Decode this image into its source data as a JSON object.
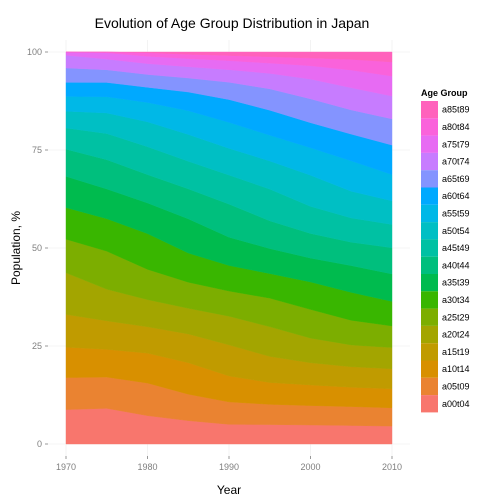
{
  "chart_data": {
    "type": "area",
    "stacked": true,
    "normalized_percent": true,
    "title": "Evolution of Age Group Distribution in Japan",
    "xlabel": "Year",
    "ylabel": "Population, %",
    "xlim": [
      1970,
      2010
    ],
    "ylim": [
      0,
      100
    ],
    "x_ticks": [
      "1970",
      "1980",
      "1990",
      "2000",
      "2010"
    ],
    "y_ticks": [
      "0",
      "25",
      "50",
      "75",
      "100"
    ],
    "grid": true,
    "legend": {
      "title": "Age Group",
      "position": "right"
    },
    "x": [
      1970,
      1975,
      1980,
      1985,
      1990,
      1995,
      2000,
      2005,
      2010
    ],
    "series": [
      {
        "name": "a00t04",
        "color": "#F8766D",
        "values": [
          8.6,
          9.0,
          7.3,
          6.0,
          5.0,
          4.9,
          4.7,
          4.5,
          4.3
        ]
      },
      {
        "name": "a05t09",
        "color": "#EA8331",
        "values": [
          8.0,
          7.9,
          8.4,
          6.8,
          5.7,
          5.1,
          4.8,
          4.6,
          4.4
        ]
      },
      {
        "name": "a10t14",
        "color": "#D89000",
        "values": [
          7.6,
          7.0,
          7.7,
          8.1,
          6.6,
          5.5,
          5.1,
          4.7,
          4.6
        ]
      },
      {
        "name": "a15t19",
        "color": "#C09B00",
        "values": [
          8.2,
          7.2,
          6.8,
          7.4,
          7.9,
          6.6,
          5.5,
          5.0,
          4.8
        ]
      },
      {
        "name": "a20t24",
        "color": "#A3A500",
        "values": [
          10.4,
          8.0,
          7.0,
          6.6,
          7.3,
          7.5,
          6.1,
          5.3,
          5.1
        ]
      },
      {
        "name": "a25t29",
        "color": "#7CAE00",
        "values": [
          8.4,
          9.6,
          7.8,
          6.7,
          6.4,
          7.2,
          7.1,
          6.0,
          5.2
        ]
      },
      {
        "name": "a30t34",
        "color": "#39B600",
        "values": [
          7.9,
          8.2,
          9.2,
          7.5,
          6.5,
          6.2,
          6.8,
          6.8,
          5.9
        ]
      },
      {
        "name": "a35t39",
        "color": "#00BB4E",
        "values": [
          7.8,
          7.5,
          7.9,
          8.8,
          7.2,
          6.3,
          5.9,
          6.5,
          6.6
        ]
      },
      {
        "name": "a40t44",
        "color": "#00BF7D",
        "values": [
          6.8,
          7.4,
          7.3,
          7.7,
          8.4,
          7.0,
          6.1,
          5.7,
          6.3
        ]
      },
      {
        "name": "a45t49",
        "color": "#00C1A3",
        "values": [
          5.3,
          6.6,
          7.2,
          7.1,
          7.4,
          8.0,
          6.7,
          5.9,
          5.6
        ]
      },
      {
        "name": "a50t54",
        "color": "#00BFC4",
        "values": [
          4.2,
          5.2,
          6.4,
          6.9,
          6.8,
          7.1,
          7.7,
          6.5,
          5.7
        ]
      },
      {
        "name": "a55t59",
        "color": "#00B8E7",
        "values": [
          3.7,
          4.1,
          5.0,
          6.1,
          6.6,
          6.5,
          6.8,
          7.4,
          6.3
        ]
      },
      {
        "name": "a60t64",
        "color": "#00A9FF",
        "values": [
          3.5,
          3.6,
          3.9,
          4.8,
          5.8,
          6.3,
          6.2,
          6.5,
          7.1
        ]
      },
      {
        "name": "a65t69",
        "color": "#8494FF",
        "values": [
          3.6,
          3.2,
          3.3,
          3.6,
          4.4,
          5.4,
          5.9,
          5.9,
          6.3
        ]
      },
      {
        "name": "a70t74",
        "color": "#C77CFF",
        "values": [
          3.2,
          2.7,
          2.8,
          2.9,
          3.2,
          3.9,
          4.9,
          5.4,
          5.5
        ]
      },
      {
        "name": "a75t79",
        "color": "#E76BF3",
        "values": [
          0.8,
          1.6,
          1.9,
          2.1,
          2.3,
          2.6,
          3.3,
          4.3,
          4.8
        ]
      },
      {
        "name": "a80t84",
        "color": "#FA62DB",
        "values": [
          0.0,
          0.2,
          0.9,
          1.1,
          1.3,
          1.6,
          1.9,
          2.6,
          3.4
        ]
      },
      {
        "name": "a85t89",
        "color": "#FF62BC",
        "values": [
          0.0,
          0.0,
          0.2,
          0.6,
          0.9,
          1.2,
          1.5,
          1.8,
          2.4
        ]
      }
    ]
  }
}
